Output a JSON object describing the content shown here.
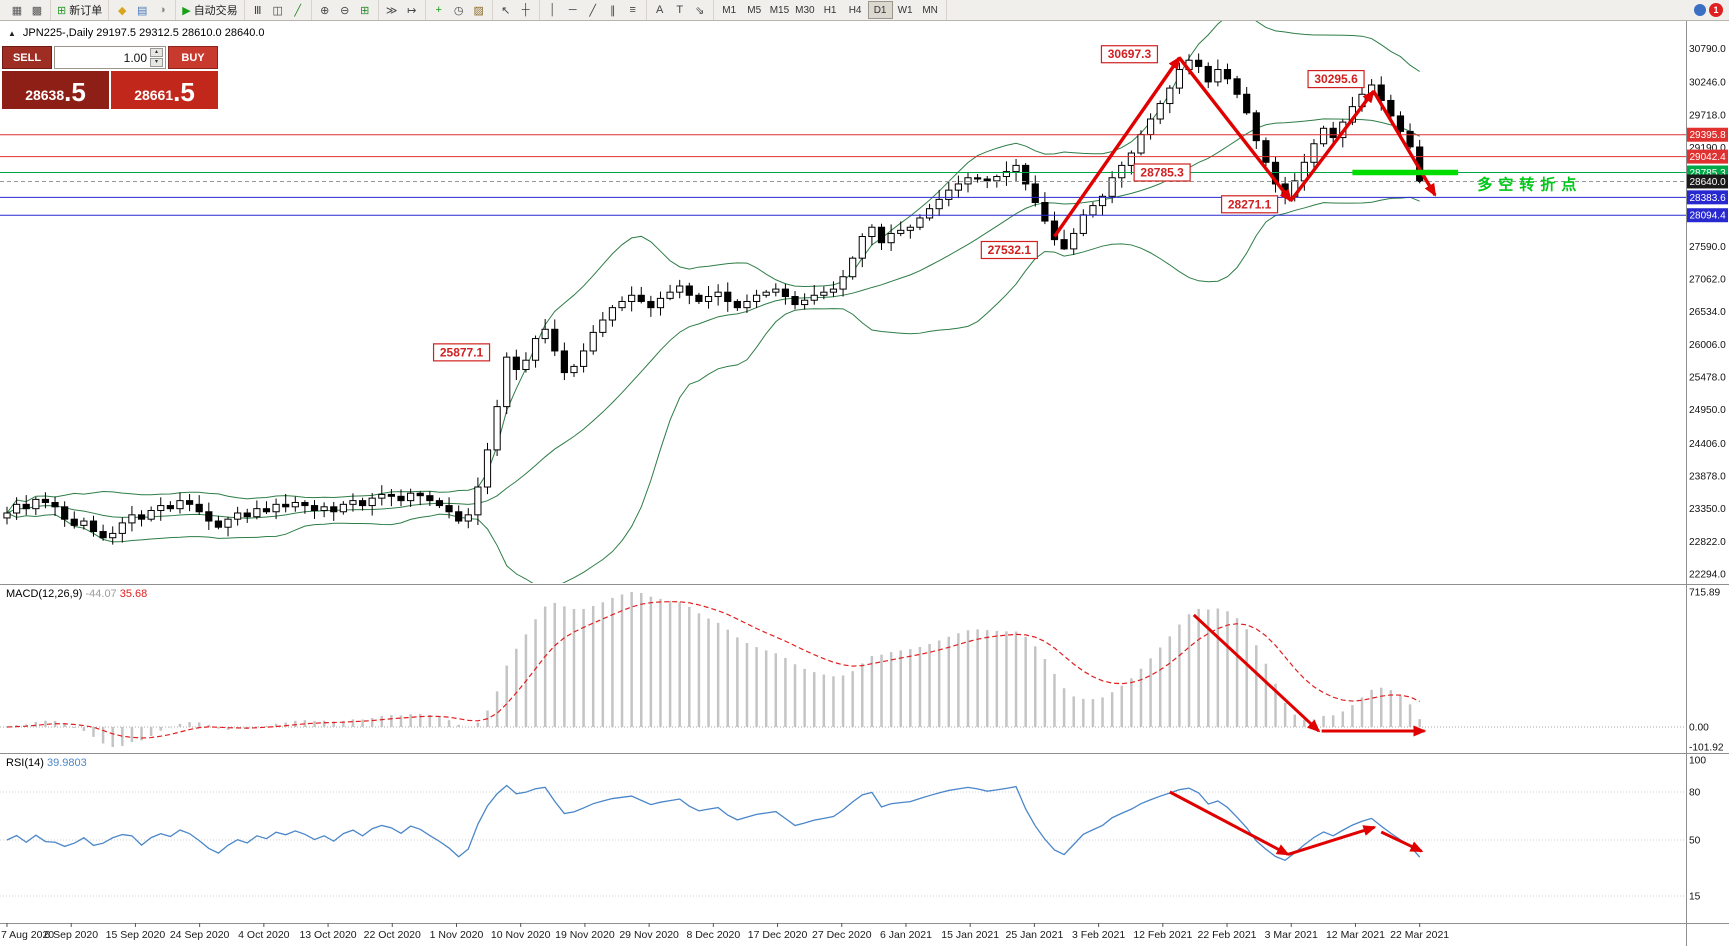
{
  "toolbar": {
    "groups": [
      {
        "buttons": [
          {
            "name": "new-chart",
            "glyph": "▦",
            "color": "#555"
          },
          {
            "name": "chart-profiles",
            "glyph": "▩",
            "color": "#555"
          }
        ]
      },
      {
        "buttons": [
          {
            "name": "new-order",
            "glyph": "⊞",
            "color": "#2a9a2a",
            "label": "新订单"
          }
        ]
      },
      {
        "buttons": [
          {
            "name": "metaeditor",
            "glyph": "◆",
            "color": "#d9a520"
          },
          {
            "name": "terminal",
            "glyph": "▤",
            "color": "#4a7ab5"
          },
          {
            "name": "strategy-tester",
            "glyph": "◑",
            "color": "#888"
          }
        ]
      },
      {
        "buttons": [
          {
            "name": "autotrading",
            "glyph": "▶",
            "color": "#18a018",
            "label": "自动交易"
          }
        ]
      },
      {
        "buttons": [
          {
            "name": "chart-bars",
            "glyph": "Ⅲ",
            "color": "#444"
          },
          {
            "name": "chart-candles",
            "glyph": "◫",
            "color": "#444"
          },
          {
            "name": "chart-line",
            "glyph": "╱",
            "color": "#2a8a2a"
          }
        ]
      },
      {
        "buttons": [
          {
            "name": "zoom-in",
            "glyph": "⊕",
            "color": "#444"
          },
          {
            "name": "zoom-out",
            "glyph": "⊖",
            "color": "#444"
          },
          {
            "name": "tile-windows",
            "glyph": "⊞",
            "color": "#2a8a2a"
          }
        ]
      },
      {
        "buttons": [
          {
            "name": "auto-scroll",
            "glyph": "≫",
            "color": "#444"
          },
          {
            "name": "chart-shift",
            "glyph": "↦",
            "color": "#444"
          }
        ]
      },
      {
        "buttons": [
          {
            "name": "indicators",
            "glyph": "+",
            "color": "#18a018"
          },
          {
            "name": "periods",
            "glyph": "◷",
            "color": "#444"
          },
          {
            "name": "templates",
            "glyph": "▨",
            "color": "#8a6a2a"
          }
        ]
      },
      {
        "buttons": [
          {
            "name": "cursor",
            "glyph": "↖",
            "color": "#444"
          },
          {
            "name": "crosshair",
            "glyph": "┼",
            "color": "#444"
          }
        ]
      },
      {
        "buttons": [
          {
            "name": "vertical-line",
            "glyph": "│",
            "color": "#444"
          },
          {
            "name": "horizontal-line",
            "glyph": "─",
            "color": "#444"
          },
          {
            "name": "trendline",
            "glyph": "╱",
            "color": "#444"
          },
          {
            "name": "equidistant-channel",
            "glyph": "∥",
            "color": "#444"
          },
          {
            "name": "fibonacci",
            "glyph": "≡",
            "color": "#444"
          }
        ]
      },
      {
        "buttons": [
          {
            "name": "text",
            "glyph": "A",
            "color": "#444"
          },
          {
            "name": "text-label",
            "glyph": "T",
            "color": "#444"
          },
          {
            "name": "arrow-tools",
            "glyph": "⇘",
            "color": "#444"
          }
        ]
      },
      {
        "timeframes": [
          "M1",
          "M5",
          "M15",
          "M30",
          "H1",
          "H4",
          "D1",
          "W1",
          "MN"
        ],
        "active": "D1"
      }
    ],
    "notification": {
      "count": "1"
    }
  },
  "symbol_info": {
    "toggle": "▲",
    "display": "JPN225-,Daily  29197.5 29312.5 28610.0 28640.0"
  },
  "trade_panel": {
    "sell_label": "SELL",
    "buy_label": "BUY",
    "volume": "1.00",
    "spinner_up": "▴",
    "spinner_down": "▾",
    "bid": "28638.5",
    "ask": "28661.5"
  },
  "price_axis": {
    "labels": [
      30790.0,
      30246.0,
      29718.0,
      29190.0,
      27590.0,
      27062.0,
      26534.0,
      26006.0,
      25478.0,
      24950.0,
      24406.0,
      23878.0,
      23350.0,
      22822.0,
      22294.0
    ],
    "boxed": [
      {
        "text": "29395.8",
        "price": 29395.8,
        "bg": "#e03030"
      },
      {
        "text": "29042.4",
        "price": 29042.4,
        "bg": "#e03030"
      },
      {
        "text": "28785.3",
        "price": 28785.3,
        "bg": "#00a848"
      },
      {
        "text": "28640.0",
        "price": 28640.0,
        "bg": "#1a1a1a"
      },
      {
        "text": "28383.6",
        "price": 28383.6,
        "bg": "#2828d0"
      },
      {
        "text": "28094.4",
        "price": 28094.4,
        "bg": "#2828d0"
      }
    ]
  },
  "levels": [
    {
      "price": 29395.8,
      "color": "#e03030"
    },
    {
      "price": 29042.4,
      "color": "#e03030"
    },
    {
      "price": 28785.3,
      "color": "#00a848"
    },
    {
      "price": 28383.6,
      "color": "#2828d0"
    },
    {
      "price": 28094.4,
      "color": "#2828d0"
    }
  ],
  "annotations": {
    "label_color": "#d02020",
    "arrow_color": "#e00000",
    "price_labels": [
      {
        "text": "25877.1",
        "bar": 47.3,
        "price": 25877.1
      },
      {
        "text": "27532.1",
        "bar": 104.3,
        "price": 27532.1
      },
      {
        "text": "30697.3",
        "bar": 116.8,
        "price": 30697.3
      },
      {
        "text": "28785.3",
        "bar": 120.2,
        "price": 28785.3
      },
      {
        "text": "28271.1",
        "bar": 129.3,
        "price": 28271.1
      },
      {
        "text": "30295.6",
        "bar": 138.3,
        "price": 30295.6
      }
    ],
    "trend_arrows": [
      {
        "from": [
          109,
          27750
        ],
        "to": [
          122,
          30640
        ]
      },
      {
        "from": [
          122,
          30640
        ],
        "to": [
          133.6,
          28330
        ]
      },
      {
        "from": [
          133.6,
          28330
        ],
        "to": [
          142.2,
          30100
        ]
      },
      {
        "from": [
          142.2,
          30100
        ],
        "to": [
          148.6,
          28420
        ]
      }
    ],
    "support_line": {
      "from_bar": 140,
      "to_bar": 151,
      "price": 28785.3,
      "color": "#00dd00"
    },
    "note": {
      "text": "多空转折点",
      "bar": 153,
      "price": 28590,
      "color": "#00c818"
    }
  },
  "macd": {
    "label": "MACD(12,26,9)",
    "hist_value": "-44.07",
    "signal_value": "35.68",
    "axis": [
      "715.89",
      "0.00",
      "-101.92"
    ],
    "arrows": [
      {
        "from": [
          123.5,
          0.83
        ],
        "to": [
          136.5,
          -0.03
        ]
      },
      {
        "from": [
          136.8,
          -0.03
        ],
        "to": [
          147.5,
          -0.03
        ]
      }
    ]
  },
  "rsi": {
    "label": "RSI(14)",
    "value": "39.9803",
    "axis_levels": [
      100,
      80,
      50,
      15
    ],
    "level_lines": [
      80,
      50,
      15
    ],
    "arrows": [
      {
        "from": [
          121,
          80
        ],
        "to": [
          133.3,
          41
        ]
      },
      {
        "from": [
          133.3,
          41
        ],
        "to": [
          142.3,
          58
        ]
      },
      {
        "from": [
          143,
          55
        ],
        "to": [
          147.2,
          43
        ]
      }
    ]
  },
  "time_axis": {
    "labels": [
      "7 Aug 2020",
      "6 Sep 2020",
      "15 Sep 2020",
      "24 Sep 2020",
      "4 Oct 2020",
      "13 Oct 2020",
      "22 Oct 2020",
      "1 Nov 2020",
      "10 Nov 2020",
      "19 Nov 2020",
      "29 Nov 2020",
      "8 Dec 2020",
      "17 Dec 2020",
      "27 Dec 2020",
      "6 Jan 2021",
      "15 Jan 2021",
      "25 Jan 2021",
      "3 Feb 2021",
      "12 Feb 2021",
      "22 Feb 2021",
      "3 Mar 2021",
      "12 Mar 2021",
      "22 Mar 2021"
    ]
  },
  "colors": {
    "bollinger": "#2e7d46",
    "macd_hist": "#c4c4c4",
    "macd_hist_label": "#9c9c9c",
    "macd_signal": "#e02020",
    "rsi_line": "#4a86c8"
  },
  "chart_data": {
    "type": "candlestick",
    "symbol": "JPN225-",
    "timeframe": "Daily",
    "current_ohlc": {
      "open": 29197.5,
      "high": 29312.5,
      "low": 28610.0,
      "close": 28640.0
    },
    "first_open": 23200,
    "closes": [
      23280,
      23420,
      23350,
      23500,
      23450,
      23380,
      23180,
      23080,
      23150,
      22980,
      22880,
      22950,
      23120,
      23250,
      23180,
      23320,
      23400,
      23350,
      23480,
      23420,
      23300,
      23150,
      23050,
      23180,
      23280,
      23220,
      23350,
      23300,
      23420,
      23380,
      23450,
      23400,
      23320,
      23380,
      23300,
      23420,
      23480,
      23400,
      23520,
      23580,
      23550,
      23480,
      23600,
      23560,
      23480,
      23400,
      23300,
      23150,
      23250,
      23700,
      24300,
      25000,
      25800,
      25600,
      25750,
      26100,
      26250,
      25900,
      25550,
      25650,
      25900,
      26200,
      26400,
      26600,
      26700,
      26800,
      26700,
      26600,
      26750,
      26850,
      26950,
      26800,
      26700,
      26780,
      26850,
      26700,
      26600,
      26700,
      26800,
      26850,
      26900,
      26780,
      26650,
      26720,
      26800,
      26850,
      26900,
      27100,
      27400,
      27750,
      27900,
      27650,
      27800,
      27850,
      27900,
      28050,
      28200,
      28350,
      28500,
      28600,
      28700,
      28680,
      28650,
      28720,
      28800,
      28900,
      28600,
      28300,
      28000,
      27700,
      27550,
      27800,
      28100,
      28250,
      28400,
      28700,
      28900,
      29100,
      29400,
      29650,
      29900,
      30150,
      30450,
      30600,
      30500,
      30250,
      30450,
      30300,
      30050,
      29750,
      29300,
      28950,
      28600,
      28400,
      28650,
      28950,
      29250,
      29500,
      29350,
      29600,
      29850,
      30050,
      30200,
      29950,
      29700,
      29450,
      29200,
      28640
    ],
    "special_bars": {
      "52": {
        "high": 25877.1
      },
      "110": {
        "low": 27532.1
      },
      "123": {
        "high": 30697.3
      },
      "133": {
        "low": 28271.1
      },
      "142": {
        "high": 30295.6
      },
      "147": {
        "open": 29197.5,
        "high": 29312.5,
        "low": 28610.0,
        "close": 28640.0
      }
    },
    "indicators": {
      "bollinger_period": 20,
      "bollinger_dev": 2,
      "macd": [
        12,
        26,
        9
      ],
      "rsi_period": 14
    }
  }
}
